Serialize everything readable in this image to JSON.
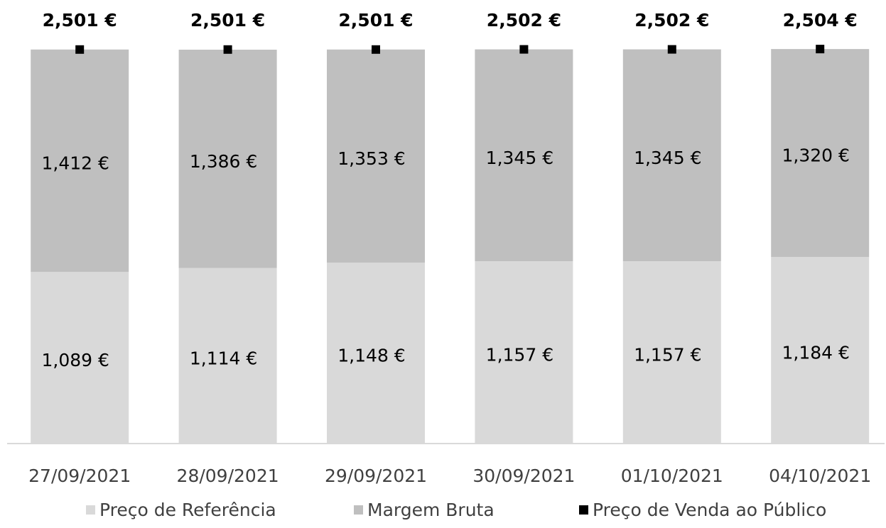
{
  "chart_data": {
    "type": "bar",
    "stacked": true,
    "categories": [
      "27/09/2021",
      "28/09/2021",
      "29/09/2021",
      "30/09/2021",
      "01/10/2021",
      "04/10/2021"
    ],
    "ylim": [
      0,
      2.5
    ],
    "series": [
      {
        "name": "Preço de Referência",
        "color": "#d9d9d9",
        "values": [
          1.089,
          1.114,
          1.148,
          1.157,
          1.157,
          1.184
        ],
        "value_labels": [
          "1,089 €",
          "1,114 €",
          "1,148 €",
          "1,157 €",
          "1,157 €",
          "1,184 €"
        ]
      },
      {
        "name": "Margem Bruta",
        "color": "#bfbfbf",
        "values": [
          1.412,
          1.386,
          1.353,
          1.345,
          1.345,
          1.32
        ],
        "value_labels": [
          "1,412 €",
          "1,386 €",
          "1,353 €",
          "1,345 €",
          "1,345 €",
          "1,320 €"
        ]
      },
      {
        "name": "Preço de Venda ao Público",
        "color": "#000000",
        "type": "scatter",
        "values": [
          2.501,
          2.501,
          2.501,
          2.502,
          2.502,
          2.504
        ],
        "value_labels": [
          "2,501 €",
          "2,501 €",
          "2,501 €",
          "2,502 €",
          "2,502 €",
          "2,504 €"
        ]
      }
    ]
  }
}
